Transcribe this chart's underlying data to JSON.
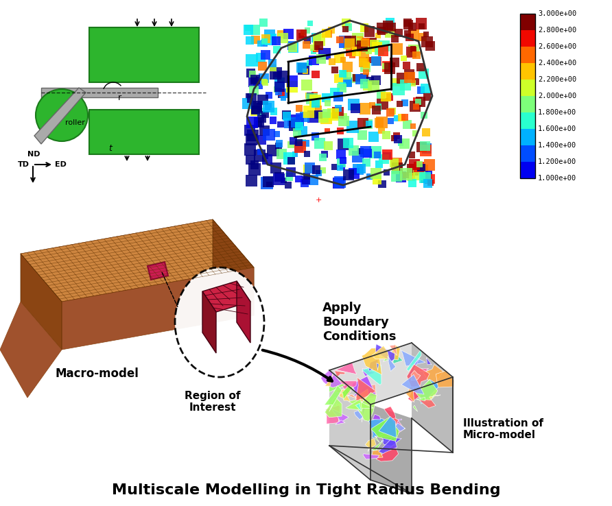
{
  "title": "Multiscale Modelling in Tight Radius Bending",
  "title_fontsize": 16,
  "title_fontweight": "bold",
  "background_color": "#ffffff",
  "colorbar_labels": [
    "3.000e+00",
    "2.800e+00",
    "2.600e+00",
    "2.400e+00",
    "2.200e+00",
    "2.000e+00",
    "1.800e+00",
    "1.600e+00",
    "1.400e+00",
    "1.200e+00",
    "1.000e+00"
  ],
  "colorbar_colors": [
    "#ff0000",
    "#ff4400",
    "#ff8800",
    "#ffcc00",
    "#ccff00",
    "#88ff00",
    "#44ff44",
    "#00ffcc",
    "#00ccff",
    "#0088ff",
    "#0000ff"
  ],
  "label_macro": "Macro-model",
  "label_region": "Region of\nInterest",
  "label_apply": "Apply\nBoundary\nConditions",
  "label_micro": "Illustration of\nMicro-model",
  "label_roller": "roller",
  "label_nd": "ND",
  "label_td": "TD",
  "label_ed": "ED",
  "label_r": "r",
  "label_t": "t"
}
